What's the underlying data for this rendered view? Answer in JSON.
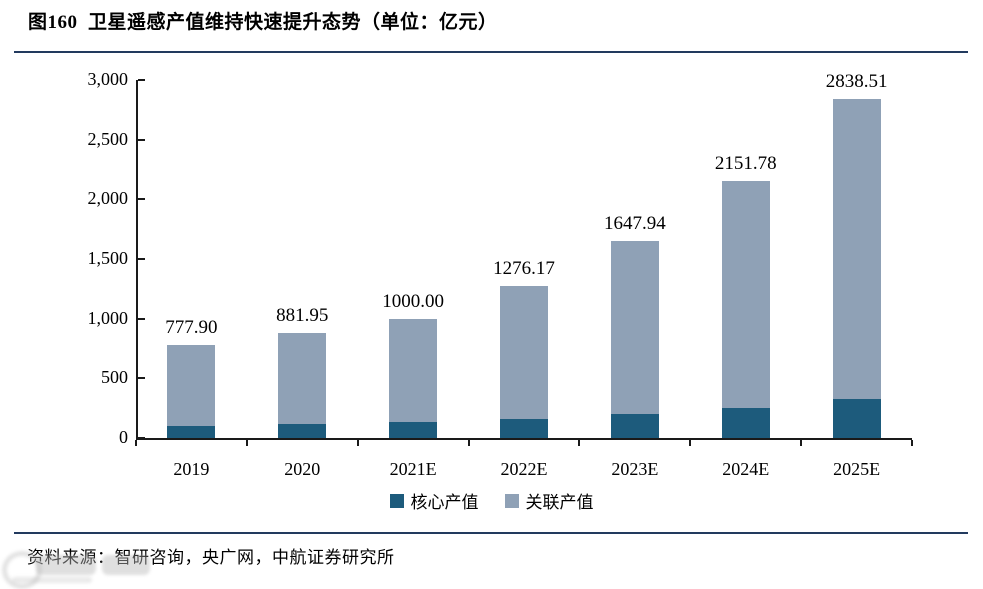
{
  "page": {
    "title": "图160  卫星遥感产值维持快速提升态势（单位：亿元）",
    "source": "资料来源：智研咨询，央广网，中航证券研究所"
  },
  "chart_data": {
    "type": "bar",
    "stacked": true,
    "title": "图160 卫星遥感产值维持快速提升态势",
    "unit": "亿元",
    "categories": [
      "2019",
      "2020",
      "2021E",
      "2022E",
      "2023E",
      "2024E",
      "2025E"
    ],
    "series": [
      {
        "name": "核心产值",
        "color": "#1d5b7c",
        "values": [
          100,
          115,
          137,
          158,
          205,
          255,
          330
        ],
        "values_estimated_from_pixels": true
      },
      {
        "name": "关联产值",
        "color": "#8fa1b6",
        "values": [
          677.9,
          766.95,
          863.0,
          1118.17,
          1442.94,
          1896.78,
          2508.51
        ]
      }
    ],
    "totals": [
      777.9,
      881.95,
      1000.0,
      1276.17,
      1647.94,
      2151.78,
      2838.51
    ],
    "total_labels": [
      "777.90",
      "881.95",
      "1000.00",
      "1276.17",
      "1647.94",
      "2151.78",
      "2838.51"
    ],
    "ylim": [
      0,
      3000
    ],
    "ytick_step": 500,
    "ytick_labels": [
      "0",
      "500",
      "1,000",
      "1,500",
      "2,000",
      "2,500",
      "3,000"
    ],
    "grid": false,
    "legend_position": "bottom"
  },
  "colors": {
    "core_bar": "#1d5b7c",
    "related_bar": "#8fa1b6",
    "axis": "#1a1a1a",
    "divider": "#223a5e",
    "text": "#000000",
    "background": "#ffffff"
  }
}
